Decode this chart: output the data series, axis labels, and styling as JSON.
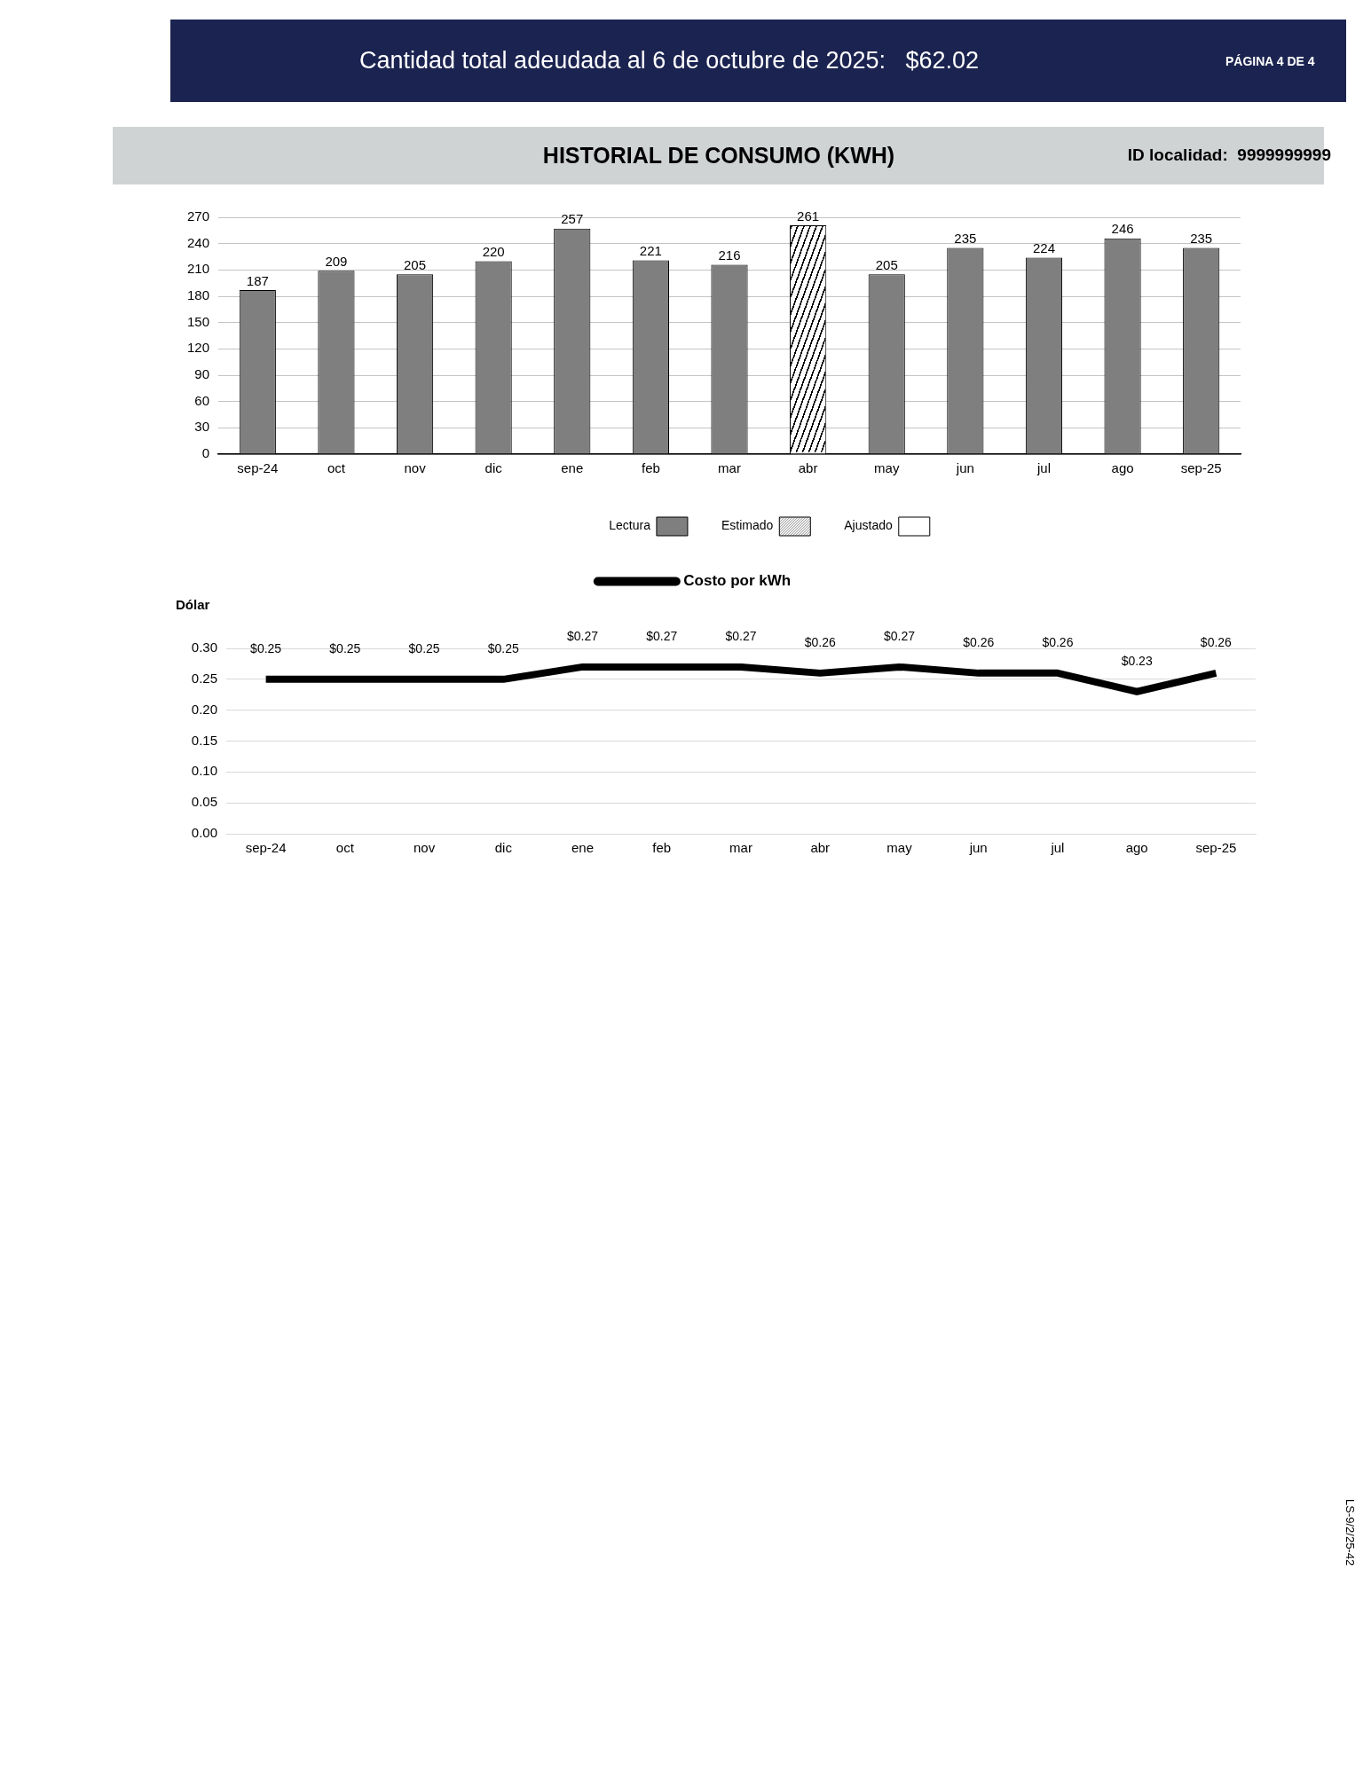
{
  "chart_data": [
    {
      "type": "bar",
      "title": "HISTORIAL DE CONSUMO (KWH)",
      "annotations": [
        "Cantidad total adeudada al 6 de octubre de 2025:   $62.02",
        "PÁGINA 4 DE 4",
        "ID localidad:  9999999999"
      ],
      "categories": [
        "sep-24",
        "oct",
        "nov",
        "dic",
        "ene",
        "feb",
        "mar",
        "abr",
        "may",
        "jun",
        "jul",
        "ago",
        "sep-25"
      ],
      "series": [
        {
          "name": "Lectura",
          "color": "#7f7f7f",
          "values": [
            187,
            209,
            205,
            220,
            257,
            221,
            216,
            null,
            205,
            235,
            224,
            246,
            235
          ]
        },
        {
          "name": "Estimado",
          "color": "#000000",
          "values": [
            null,
            null,
            null,
            null,
            null,
            null,
            null,
            261,
            null,
            null,
            null,
            null,
            null
          ]
        },
        {
          "name": "Ajustado",
          "color": "#ffffff",
          "values": [
            null,
            null,
            null,
            null,
            null,
            null,
            null,
            null,
            null,
            null,
            null,
            null,
            null
          ]
        }
      ],
      "stacked": true,
      "ylim": [
        0,
        270
      ],
      "yticks": [
        0,
        30,
        60,
        90,
        120,
        150,
        180,
        210,
        240,
        270
      ],
      "grid": "y",
      "legend": "bottom",
      "data_labels": true
    },
    {
      "type": "line",
      "ylabel": "Dólar",
      "annotations": [
        "LS-9/2/25-42"
      ],
      "categories": [
        "sep-24",
        "oct",
        "nov",
        "dic",
        "ene",
        "feb",
        "mar",
        "abr",
        "may",
        "jun",
        "jul",
        "ago",
        "sep-25"
      ],
      "series": [
        {
          "name": "Costo por kWh",
          "color": "#000000",
          "values": [
            0.25,
            0.25,
            0.25,
            0.25,
            0.27,
            0.27,
            0.27,
            0.26,
            0.27,
            0.26,
            0.26,
            0.23,
            0.26
          ],
          "value_labels": [
            "$0.25",
            "$0.25",
            "$0.25",
            "$0.25",
            "$0.27",
            "$0.27",
            "$0.27",
            "$0.26",
            "$0.27",
            "$0.26",
            "$0.26",
            "$0.23",
            "$0.26"
          ]
        }
      ],
      "ylim": [
        0,
        0.3
      ],
      "yticks": [
        {
          "value": 0,
          "label": "0.00"
        },
        0.05,
        {
          "value": 0.1,
          "label": "0.10"
        },
        0.15,
        {
          "value": 0.2,
          "label": "0.20"
        },
        0.25,
        {
          "value": 0.3,
          "label": "0.30"
        }
      ],
      "grid": "y",
      "legend": "top",
      "marker": "none",
      "line_style": "solid"
    }
  ]
}
